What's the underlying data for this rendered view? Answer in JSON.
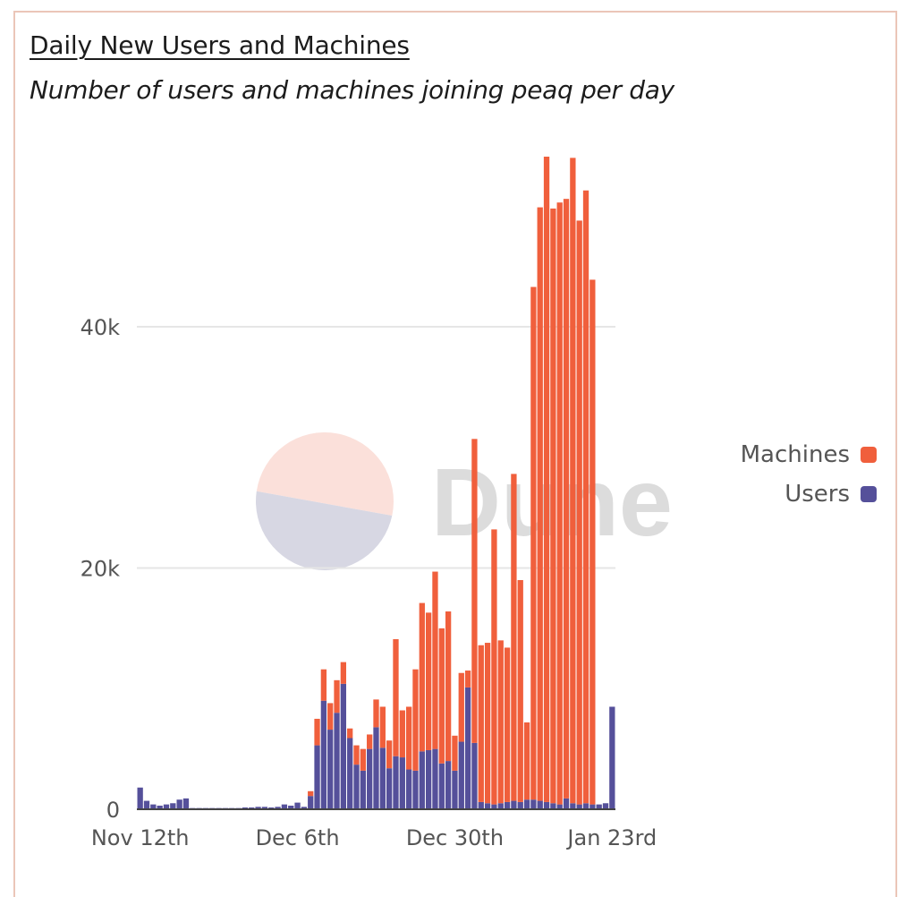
{
  "header": {
    "title": "Daily New Users and Machines",
    "subtitle": "Number of users and machines joining peaq per day"
  },
  "watermark": {
    "text": "Dune"
  },
  "colors": {
    "machines": "#f05f3c",
    "users": "#55509a",
    "grid": "#e6e6e6",
    "axis": "#444444",
    "tick_text": "#555555",
    "watermark_text": "#dcdcdc",
    "watermark_top": "#fbe0da",
    "watermark_bottom": "#d7d7e3"
  },
  "legend": {
    "placement": "right",
    "items": [
      {
        "label": "Machines",
        "color": "#f05f3c"
      },
      {
        "label": "Users",
        "color": "#55509a"
      }
    ]
  },
  "chart_data": {
    "type": "bar",
    "stacked": true,
    "title": "Daily New Users and Machines",
    "subtitle": "Number of users and machines joining peaq per day",
    "xlabel": "",
    "ylabel": "",
    "ylim": [
      0,
      55000
    ],
    "x_ticks": [
      {
        "label": "Nov 12th",
        "index": 0
      },
      {
        "label": "Dec 6th",
        "index": 24
      },
      {
        "label": "Dec 30th",
        "index": 48
      },
      {
        "label": "Jan 23rd",
        "index": 72
      }
    ],
    "y_ticks": [
      {
        "label": "0",
        "value": 0
      },
      {
        "label": "20k",
        "value": 20000
      },
      {
        "label": "40k",
        "value": 40000
      }
    ],
    "grid": true,
    "categories": [
      "Nov 12",
      "Nov 13",
      "Nov 14",
      "Nov 15",
      "Nov 16",
      "Nov 17",
      "Nov 18",
      "Nov 19",
      "Nov 20",
      "Nov 21",
      "Nov 22",
      "Nov 23",
      "Nov 24",
      "Nov 25",
      "Nov 26",
      "Nov 27",
      "Nov 28",
      "Nov 29",
      "Nov 30",
      "Dec 1",
      "Dec 2",
      "Dec 3",
      "Dec 4",
      "Dec 5",
      "Dec 6",
      "Dec 7",
      "Dec 8",
      "Dec 9",
      "Dec 10",
      "Dec 11",
      "Dec 12",
      "Dec 13",
      "Dec 14",
      "Dec 15",
      "Dec 16",
      "Dec 17",
      "Dec 18",
      "Dec 19",
      "Dec 20",
      "Dec 21",
      "Dec 22",
      "Dec 23",
      "Dec 24",
      "Dec 25",
      "Dec 26",
      "Dec 27",
      "Dec 28",
      "Dec 29",
      "Dec 30",
      "Dec 31",
      "Jan 1",
      "Jan 2",
      "Jan 3",
      "Jan 4",
      "Jan 5",
      "Jan 6",
      "Jan 7",
      "Jan 8",
      "Jan 9",
      "Jan 10",
      "Jan 11",
      "Jan 12",
      "Jan 13",
      "Jan 14",
      "Jan 15",
      "Jan 16",
      "Jan 17",
      "Jan 18",
      "Jan 19",
      "Jan 20",
      "Jan 21",
      "Jan 22",
      "Jan 23"
    ],
    "series": [
      {
        "name": "Users",
        "values": [
          1800,
          700,
          400,
          300,
          400,
          500,
          800,
          900,
          100,
          100,
          100,
          100,
          100,
          100,
          100,
          100,
          150,
          150,
          200,
          200,
          150,
          200,
          400,
          300,
          550,
          200,
          1100,
          5300,
          9000,
          6600,
          8000,
          10400,
          5900,
          3700,
          3200,
          5000,
          6800,
          5100,
          3400,
          4400,
          4300,
          3300,
          3200,
          4800,
          4900,
          5000,
          3800,
          4000,
          3200,
          5600,
          10100,
          5500,
          600,
          500,
          400,
          500,
          600,
          700,
          600,
          800,
          800,
          700,
          600,
          500,
          400,
          900,
          500,
          400,
          500,
          400,
          400,
          500,
          8500
        ]
      },
      {
        "name": "Machines",
        "values": [
          0,
          0,
          0,
          0,
          0,
          0,
          0,
          0,
          0,
          0,
          0,
          0,
          0,
          0,
          0,
          0,
          0,
          0,
          0,
          0,
          0,
          0,
          0,
          0,
          0,
          0,
          400,
          2200,
          2600,
          2200,
          2700,
          1800,
          800,
          1600,
          1800,
          1200,
          2300,
          3400,
          2300,
          9700,
          3900,
          5200,
          8400,
          12300,
          11400,
          14700,
          11200,
          12400,
          2900,
          5700,
          1400,
          25200,
          13000,
          13300,
          22800,
          13500,
          12800,
          27100,
          18400,
          6400,
          42500,
          49200,
          53500,
          49300,
          49900,
          49700,
          53500,
          48400,
          50800,
          43500,
          0,
          0,
          0
        ]
      }
    ]
  }
}
